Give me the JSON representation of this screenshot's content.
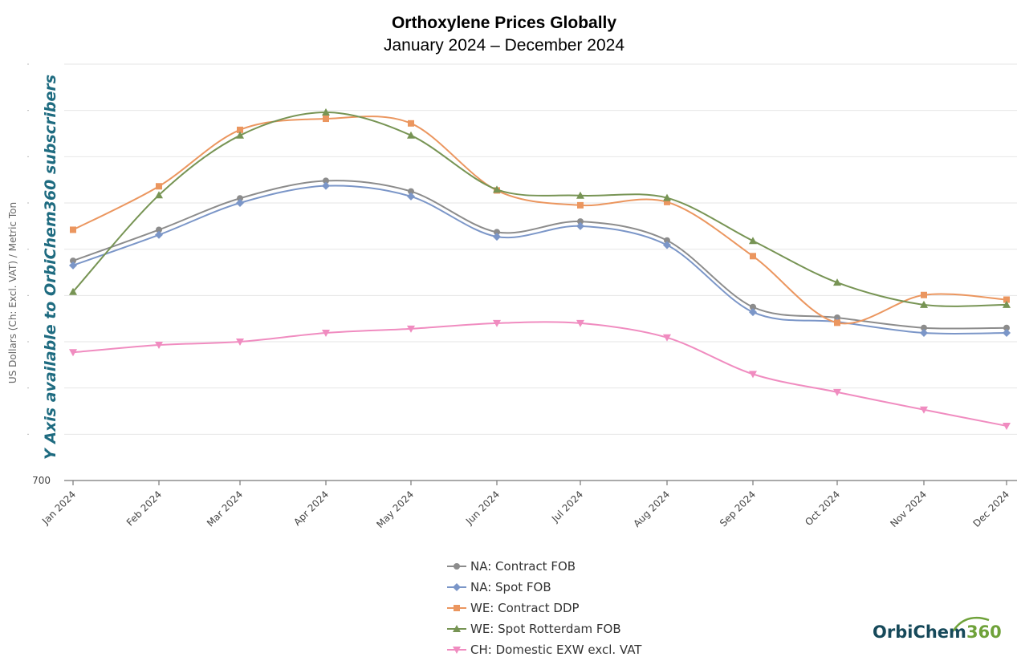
{
  "chart_data": {
    "type": "line",
    "title": "Orthoxylene Prices Globally",
    "subtitle": "January 2024 – December 2024",
    "ylabel": "US Dollars (Ch: Excl. VAT) / Metric Ton",
    "y_axis_note": "Y Axis available to OrbiChem360 subscribers",
    "y_visible_tick": "700",
    "ylim": [
      700,
      1600
    ],
    "grid": true,
    "legend_position": "bottom",
    "categories": [
      "Jan 2024",
      "Feb 2024",
      "Mar 2024",
      "Apr 2024",
      "May 2024",
      "Jun 2024",
      "Jul 2024",
      "Aug 2024",
      "Sep 2024",
      "Oct 2024",
      "Nov 2024",
      "Dec 2024"
    ],
    "series": [
      {
        "name": "NA: Contract FOB",
        "color": "#8c8c8c",
        "marker": "circle",
        "values": [
          1175,
          1242,
          1310,
          1348,
          1325,
          1237,
          1260,
          1219,
          1075,
          1052,
          1030,
          1030
        ]
      },
      {
        "name": "NA: Spot FOB",
        "color": "#7b96c8",
        "marker": "diamond",
        "values": [
          1165,
          1231,
          1300,
          1337,
          1314,
          1227,
          1250,
          1209,
          1064,
          1043,
          1019,
          1019
        ]
      },
      {
        "name": "WE: Contract DDP",
        "color": "#eb965f",
        "marker": "square",
        "values": [
          1242,
          1336,
          1458,
          1482,
          1472,
          1327,
          1295,
          1302,
          1185,
          1041,
          1101,
          1091
        ]
      },
      {
        "name": "WE: Spot Rotterdam FOB",
        "color": "#779454",
        "marker": "triangle-up",
        "values": [
          1108,
          1317,
          1446,
          1496,
          1446,
          1329,
          1316,
          1311,
          1218,
          1128,
          1080,
          1080
        ]
      },
      {
        "name": "CH: Domestic EXW excl. VAT",
        "color": "#f08cc0",
        "marker": "triangle-down",
        "values": [
          977,
          993,
          1000,
          1019,
          1028,
          1040,
          1040,
          1009,
          930,
          891,
          853,
          818
        ]
      }
    ]
  },
  "logo": {
    "part1": "OrbiChem",
    "part2": "360"
  }
}
